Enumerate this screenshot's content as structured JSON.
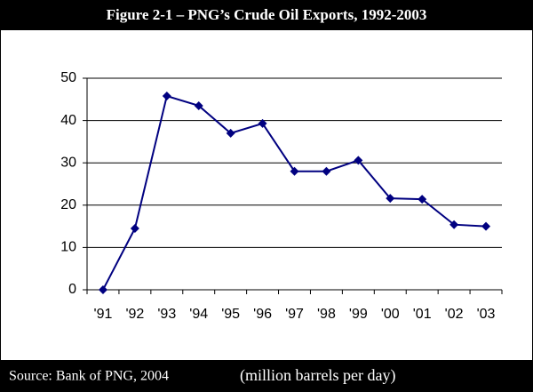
{
  "chart_data": {
    "type": "line",
    "title": "Figure 2-1 – PNG’s Crude Oil Exports, 1992-2003",
    "categories": [
      "'91",
      "'92",
      "'93",
      "'94",
      "'95",
      "'96",
      "'97",
      "'98",
      "'99",
      "'00",
      "'01",
      "'02",
      "'03"
    ],
    "series": [
      {
        "name": "Crude oil exports",
        "color": "#000080",
        "values": [
          0,
          14.5,
          45.8,
          43.5,
          37,
          39.3,
          28,
          28,
          30.6,
          21.6,
          21.4,
          15.4,
          15
        ]
      }
    ],
    "ylim": [
      0,
      50
    ],
    "yticks": [
      0,
      10,
      20,
      30,
      40,
      50
    ],
    "grid": true,
    "source": "Source: Bank of PNG, 2004",
    "units": "(million barrels per day)"
  }
}
